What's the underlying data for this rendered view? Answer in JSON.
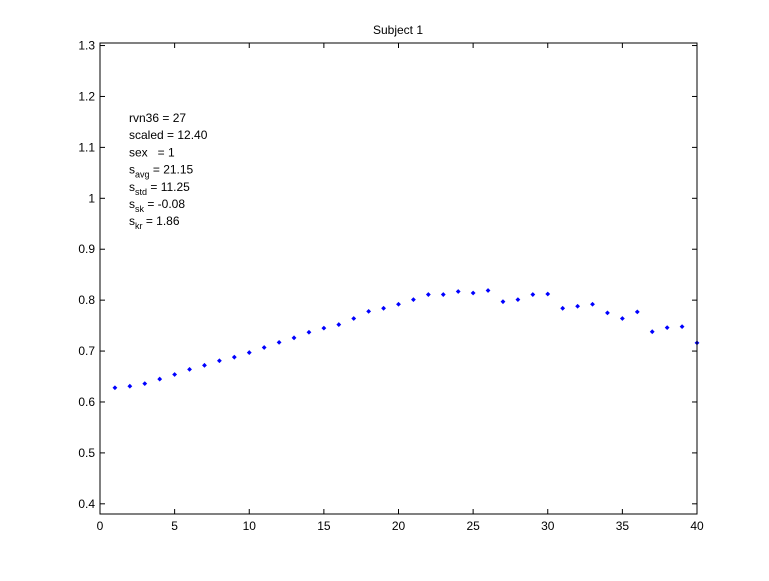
{
  "figure": {
    "background": "#ffffff"
  },
  "chart_data": {
    "type": "scatter",
    "title": "Subject 1",
    "xlabel": "",
    "ylabel": "",
    "xlim": [
      0,
      40
    ],
    "ylim": [
      0.38,
      1.305
    ],
    "grid": false,
    "marker_color": "#0000ff",
    "xticks": [
      0,
      5,
      10,
      15,
      20,
      25,
      30,
      35,
      40
    ],
    "xtick_labels": [
      "0",
      "5",
      "10",
      "15",
      "20",
      "25",
      "30",
      "35",
      "40"
    ],
    "yticks": [
      0.4,
      0.5,
      0.6,
      0.7,
      0.8,
      0.9,
      1.0,
      1.1,
      1.2,
      1.3
    ],
    "ytick_labels": [
      "0.4",
      "0.5",
      "0.6",
      "0.7",
      "0.8",
      "0.9",
      "1",
      "1.1",
      "1.2",
      "1.3"
    ],
    "series": [
      {
        "x": [
          1,
          2,
          3,
          4,
          5,
          6,
          7,
          8,
          9,
          10,
          11,
          12,
          13,
          14,
          15,
          16,
          17,
          18,
          19,
          20,
          21,
          22,
          23,
          24,
          25,
          26,
          27,
          28,
          29,
          30,
          31,
          32,
          33,
          34,
          35,
          36,
          37,
          38,
          39,
          40
        ],
        "y": [
          0.628,
          0.631,
          0.636,
          0.645,
          0.654,
          0.664,
          0.672,
          0.681,
          0.688,
          0.697,
          0.707,
          0.717,
          0.726,
          0.737,
          0.745,
          0.752,
          0.764,
          0.778,
          0.784,
          0.792,
          0.801,
          0.811,
          0.811,
          0.817,
          0.814,
          0.819,
          0.797,
          0.801,
          0.811,
          0.812,
          0.784,
          0.788,
          0.792,
          0.775,
          0.764,
          0.777,
          0.738,
          0.746,
          0.748,
          0.716
        ]
      }
    ],
    "annotation": {
      "lines": [
        {
          "base": "rvn36 = 27",
          "sub": "",
          "suffix": ""
        },
        {
          "base": "scaled = 12.40",
          "sub": "",
          "suffix": ""
        },
        {
          "base": "sex   = 1",
          "sub": "",
          "suffix": ""
        },
        {
          "base": "s",
          "sub": "avg",
          "suffix": " = 21.15"
        },
        {
          "base": "s",
          "sub": "std",
          "suffix": " = 11.25"
        },
        {
          "base": "s",
          "sub": "sk",
          "suffix": " = -0.08"
        },
        {
          "base": "s",
          "sub": "kr",
          "suffix": " = 1.86"
        }
      ]
    }
  }
}
